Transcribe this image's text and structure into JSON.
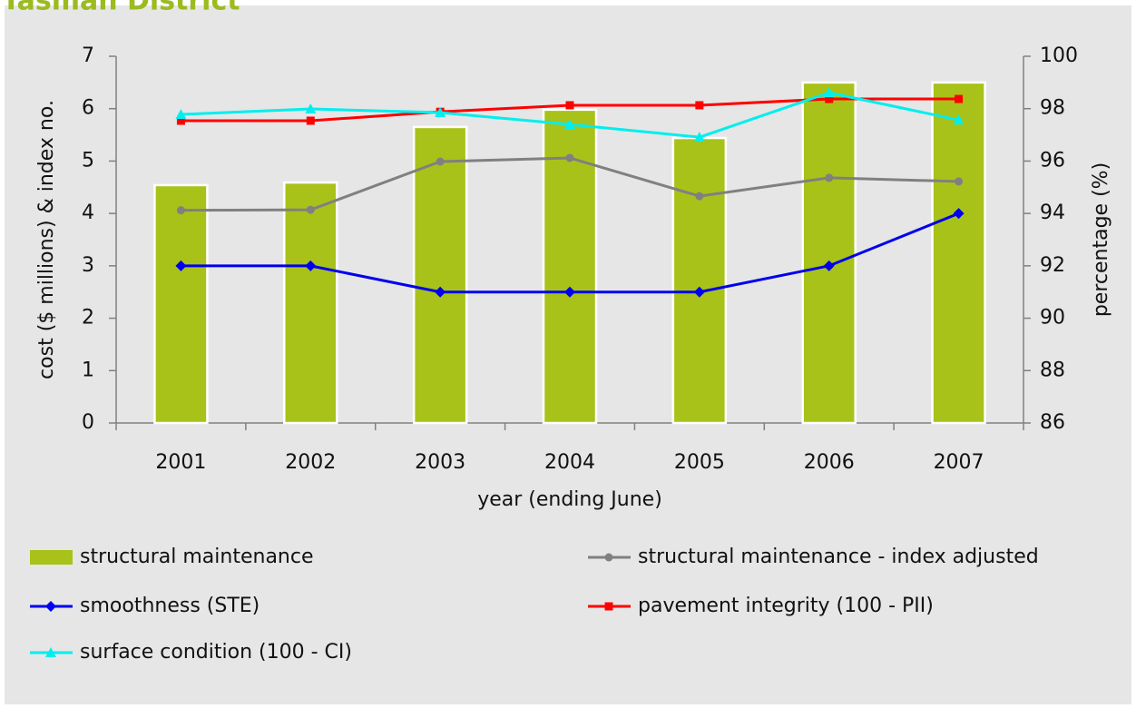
{
  "chart_data": {
    "type": "bar-line",
    "title": "Tasman District",
    "x_label": "year (ending June)",
    "y_label": "cost ($ millions) & index no.",
    "y2_label": "percentage (%)",
    "categories": [
      "2001",
      "2002",
      "2003",
      "2004",
      "2005",
      "2006",
      "2007"
    ],
    "ylim": [
      0,
      7
    ],
    "yticks": [
      0,
      1,
      2,
      3,
      4,
      5,
      6,
      7
    ],
    "y2lim": [
      86,
      100
    ],
    "y2ticks": [
      86,
      88,
      90,
      92,
      94,
      96,
      98,
      100
    ],
    "series": [
      {
        "name": "structural maintenance",
        "type": "bar",
        "color": "#a8c21a",
        "values": [
          4.54,
          4.59,
          5.65,
          5.98,
          5.44,
          6.5,
          6.5
        ]
      },
      {
        "name": "structural maintenance - index adjusted",
        "type": "line",
        "marker": "circle",
        "color": "#808080",
        "values": [
          4.06,
          4.07,
          4.99,
          5.06,
          4.33,
          4.68,
          4.61
        ]
      },
      {
        "name": "smoothness (STE)",
        "type": "line",
        "marker": "diamond",
        "color": "#0000ee",
        "values": [
          3,
          3,
          2.5,
          2.5,
          2.5,
          3,
          4
        ]
      },
      {
        "name": "pavement integrity (100 - PII)",
        "type": "line",
        "marker": "square",
        "color": "#ff0000",
        "axis": "y2",
        "values": [
          97.54,
          97.54,
          97.88,
          98.13,
          98.13,
          98.37,
          98.37
        ]
      },
      {
        "name": "surface condition (100 - CI)",
        "type": "line",
        "marker": "triangle",
        "color": "#00eeee",
        "axis": "y2",
        "values": [
          97.78,
          97.99,
          97.85,
          97.4,
          96.91,
          98.61,
          97.57
        ]
      }
    ]
  }
}
